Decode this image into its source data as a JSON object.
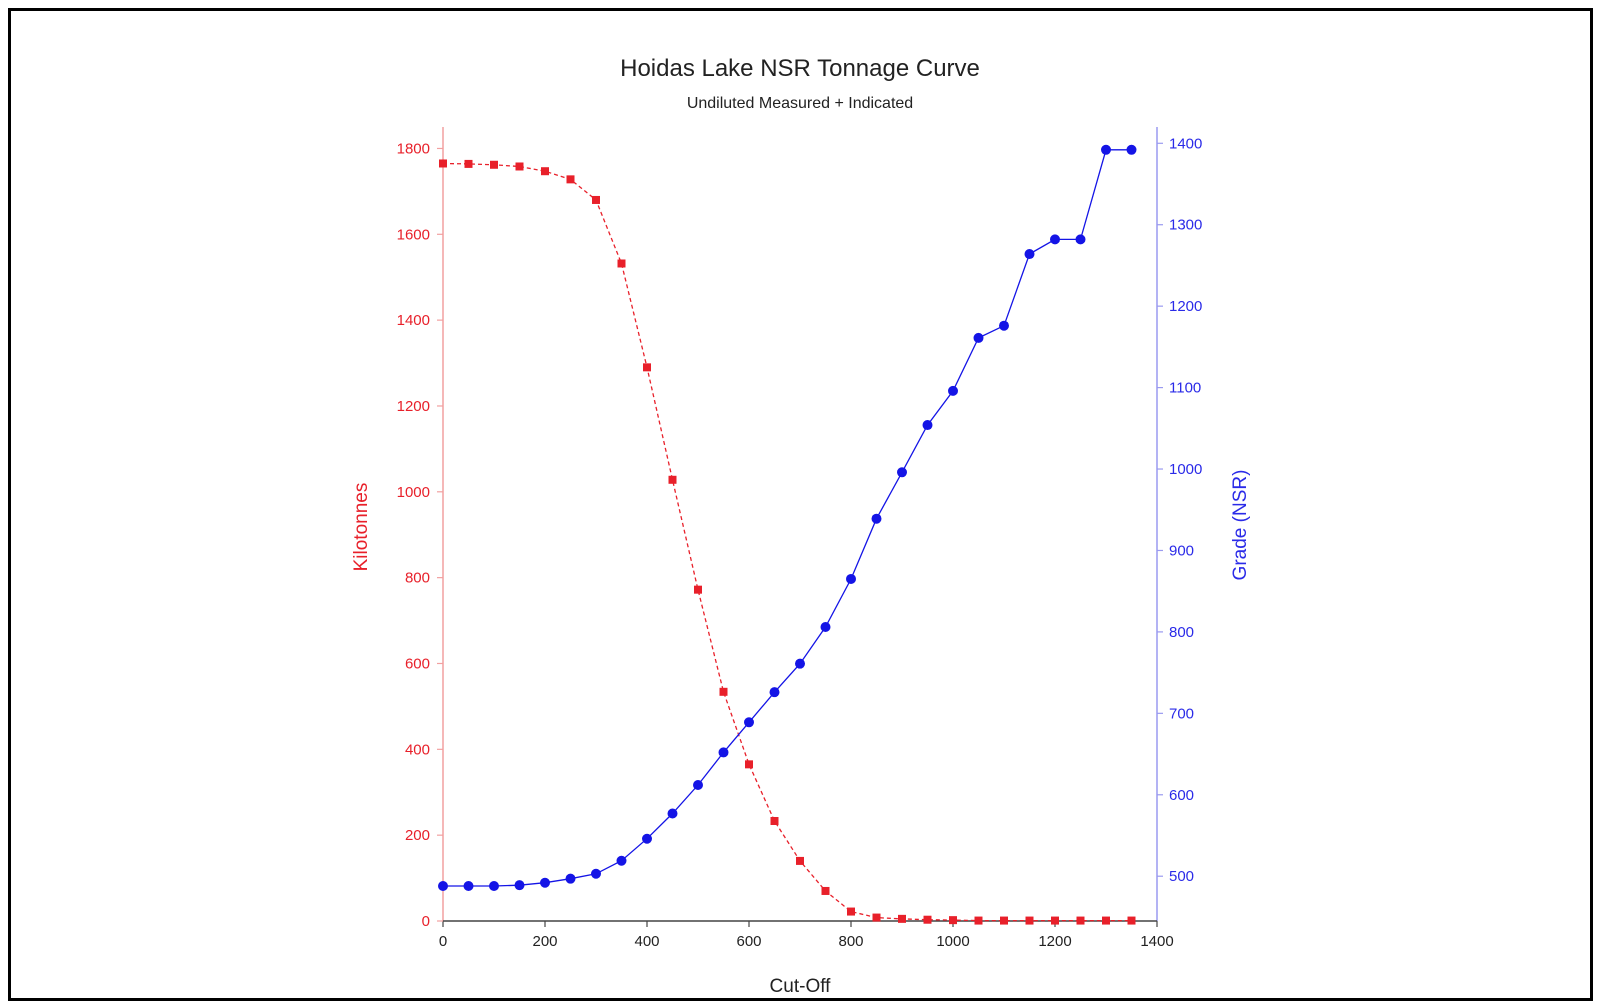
{
  "chart_data": {
    "type": "line",
    "title": "Hoidas Lake NSR Tonnage Curve",
    "subtitle": "Undiluted Measured + Indicated",
    "xlabel": "Cut-Off",
    "ylabel_left": "Kilotonnes",
    "ylabel_right": "Grade (NSR)",
    "xlim": [
      0,
      1400
    ],
    "ylim_left": [
      0,
      1850
    ],
    "ylim_right": [
      445,
      1420
    ],
    "x_ticks": [
      "0",
      "200",
      "400",
      "600",
      "800",
      "1000",
      "1200",
      "1400"
    ],
    "y_left_ticks": [
      "0",
      "200",
      "400",
      "600",
      "800",
      "1000",
      "1200",
      "1400",
      "1600",
      "1800"
    ],
    "y_right_ticks": [
      "500",
      "600",
      "700",
      "800",
      "900",
      "1000",
      "1100",
      "1200",
      "1300",
      "1400"
    ],
    "grid": false,
    "x": [
      0,
      50,
      100,
      150,
      200,
      250,
      300,
      350,
      400,
      450,
      500,
      550,
      600,
      650,
      700,
      750,
      800,
      850,
      900,
      950,
      1000,
      1050,
      1100,
      1150,
      1200,
      1250,
      1300,
      1350
    ],
    "series": [
      {
        "axis": "left",
        "color": "#e8202a",
        "marker": "square",
        "line_style": "dashed",
        "values": [
          1765,
          1764,
          1762,
          1758,
          1747,
          1728,
          1680,
          1532,
          1290,
          1028,
          772,
          534,
          365,
          233,
          140,
          70,
          22,
          8,
          5,
          3,
          2,
          1,
          1,
          1,
          1,
          1,
          1,
          1
        ]
      },
      {
        "axis": "right",
        "color": "#1414e6",
        "marker": "circle",
        "line_style": "solid",
        "values": [
          488,
          488,
          488,
          489,
          492,
          497,
          503,
          519,
          546,
          577,
          612,
          652,
          689,
          726,
          761,
          806,
          865,
          939,
          996,
          1054,
          1096,
          1161,
          1176,
          1264,
          1282,
          1282,
          1392,
          1392
        ]
      }
    ],
    "colors": {
      "left_axis": "#e8202a",
      "right_axis": "#2a2ae8",
      "left_axis_line": "#f2a0a0",
      "right_axis_line": "#9a9af0"
    }
  }
}
